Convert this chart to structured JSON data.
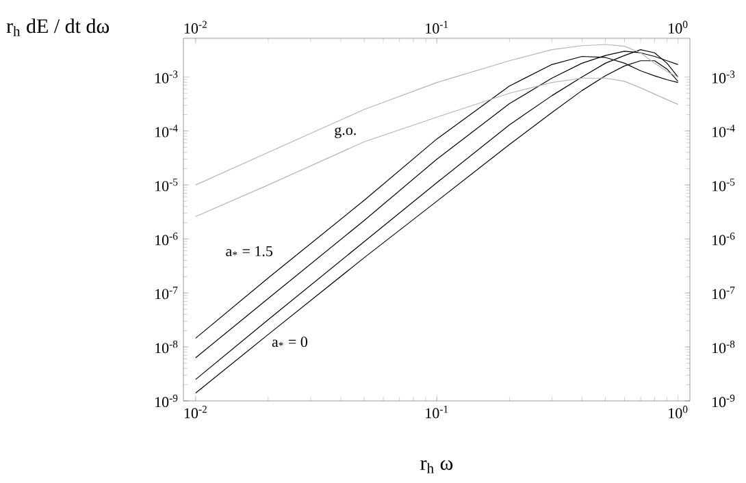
{
  "chart_data": {
    "type": "line",
    "xlabel": "r$_{h}$ ω",
    "ylabel": "r$_{h}$ dE / dt dω",
    "x": [
      0.01,
      0.02,
      0.05,
      0.1,
      0.2,
      0.3,
      0.4,
      0.5,
      0.6,
      0.7,
      0.8,
      0.9,
      1.0
    ],
    "series": [
      {
        "color": "#000000",
        "values": [
          1.45e-08,
          1.9e-07,
          5.2e-06,
          7.1e-05,
          0.00068,
          0.0017,
          0.0024,
          0.0023,
          0.0018,
          0.0013,
          0.00105,
          0.00089,
          0.00079
        ]
      },
      {
        "color": "#000000",
        "values": [
          6.3e-09,
          7.9e-08,
          2.2e-06,
          3e-05,
          0.00032,
          0.00095,
          0.0018,
          0.0025,
          0.003,
          0.0028,
          0.0024,
          0.002,
          0.0017
        ]
      },
      {
        "color": "#000000",
        "values": [
          2.5e-09,
          3.2e-08,
          8.9e-07,
          1.1e-05,
          0.00013,
          0.00045,
          0.001,
          0.0018,
          0.0025,
          0.0032,
          0.0028,
          0.0018,
          0.001
        ]
      },
      {
        "color": "#000000",
        "values": [
          1.4e-09,
          1.7e-08,
          4.5e-07,
          5e-06,
          5.6e-05,
          0.00022,
          0.00056,
          0.00105,
          0.0016,
          0.002,
          0.002,
          0.0014,
          0.00083
        ]
      },
      {
        "color": "#b4b4b4",
        "values": [
          1e-05,
          4e-05,
          0.00025,
          0.00079,
          0.002,
          0.0032,
          0.0038,
          0.004,
          0.0037,
          0.0028,
          0.0018,
          0.00126,
          0.001
        ]
      },
      {
        "color": "#b4b4b4",
        "values": [
          2.6e-06,
          1e-05,
          6.3e-05,
          0.00018,
          0.0005,
          0.00079,
          0.00095,
          0.00095,
          0.00083,
          0.00063,
          0.00048,
          0.00038,
          0.00031
        ]
      }
    ],
    "log": "xy",
    "xlim": [
      0.0089,
      1.12
    ],
    "ylim": [
      1e-09,
      0.0052
    ],
    "xticks": [
      {
        "value": 0.01,
        "label": "10$^{-2}$"
      },
      {
        "value": 0.1,
        "label": "10$^{-1}$"
      },
      {
        "value": 1,
        "label": "10$^{0}$"
      }
    ],
    "yticks": [
      {
        "value": 1e-09,
        "label": "10$^{-9}$"
      },
      {
        "value": 1e-08,
        "label": "10$^{-8}$"
      },
      {
        "value": 1e-07,
        "label": "10$^{-7}$"
      },
      {
        "value": 1e-06,
        "label": "10$^{-6}$"
      },
      {
        "value": 1e-05,
        "label": "10$^{-5}$"
      },
      {
        "value": 0.0001,
        "label": "10$^{-4}$"
      },
      {
        "value": 0.001,
        "label": "10$^{-3}$"
      }
    ],
    "annotations": [
      "a$_{*}$ = 1.5",
      "a$_{*}$ = 0",
      "g.o."
    ],
    "grid": false,
    "line_style": "solid",
    "marker": "none"
  }
}
